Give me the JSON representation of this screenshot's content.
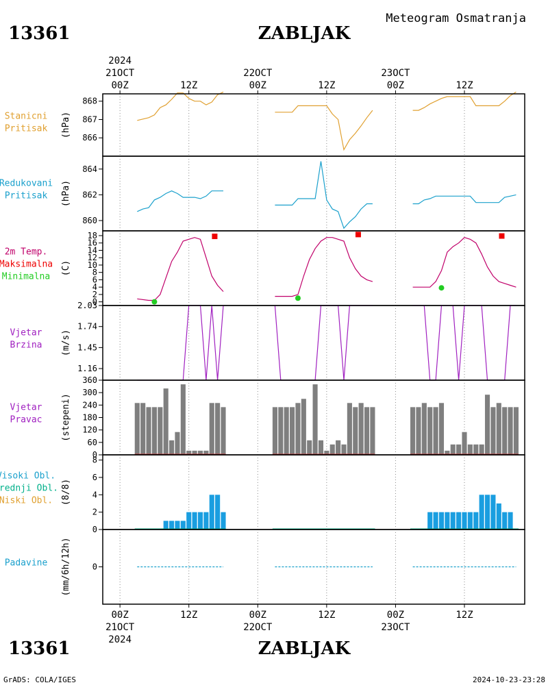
{
  "header": {
    "station_id": "13361",
    "station_name": "ZABLJAK",
    "subtitle": "Meteogram Osmatranja"
  },
  "footer": {
    "station_id": "13361",
    "station_name": "ZABLJAK",
    "credit": "GrADS: COLA/IGES",
    "timestamp": "2024-10-23-23:28"
  },
  "time_axis": {
    "year": "2024",
    "ticks": [
      {
        "hour": 0,
        "top": "21OCT",
        "bottom": "00Z",
        "year": "2024"
      },
      {
        "hour": 12,
        "top": "",
        "bottom": "12Z",
        "year": ""
      },
      {
        "hour": 24,
        "top": "22OCT",
        "bottom": "00Z",
        "year": ""
      },
      {
        "hour": 36,
        "top": "",
        "bottom": "12Z",
        "year": ""
      },
      {
        "hour": 48,
        "top": "23OCT",
        "bottom": "00Z",
        "year": ""
      },
      {
        "hour": 60,
        "top": "",
        "bottom": "12Z",
        "year": ""
      }
    ],
    "hour_range": [
      -3,
      70.5
    ]
  },
  "colors": {
    "station_pressure": "#e0a030",
    "reduced_pressure": "#1aa0cc",
    "temperature": "#c0006a",
    "max_marker": "#ee0000",
    "min_marker": "#22cc22",
    "wind": "#a020c0",
    "direction_bar": "#7f7f7f",
    "cloud_bar": "#1a9ee0",
    "cloud_high": "#1aa0cc",
    "cloud_mid": "#00b08a",
    "cloud_low": "#e0a030",
    "precip": "#1aa0cc"
  },
  "chart_data": [
    {
      "type": "line",
      "panel": "station_pressure",
      "labels": [
        "Stanicni",
        "Pritisak"
      ],
      "ylabel": "(hPa)",
      "ylim": [
        865.0,
        868.4
      ],
      "yticks": [
        866,
        867,
        868
      ],
      "segments": [
        {
          "x": [
            3,
            5,
            6,
            7,
            8,
            9,
            10,
            11,
            12,
            13,
            14,
            15,
            16,
            17,
            18
          ],
          "y": [
            866.95,
            867.1,
            867.25,
            867.65,
            867.8,
            868.1,
            868.45,
            868.45,
            868.15,
            868.0,
            868.0,
            867.8,
            867.95,
            868.35,
            868.5
          ]
        },
        {
          "x": [
            27,
            30,
            31,
            36,
            37,
            38,
            39,
            40,
            41,
            42,
            43,
            44
          ],
          "y": [
            867.4,
            867.4,
            867.75,
            867.75,
            867.3,
            867.0,
            865.35,
            865.9,
            866.25,
            866.65,
            867.1,
            867.5
          ]
        },
        {
          "x": [
            51,
            52,
            53,
            54,
            55,
            56,
            57,
            58,
            59,
            60,
            61,
            62,
            63,
            64,
            65,
            66,
            67,
            68,
            69
          ],
          "y": [
            867.5,
            867.5,
            867.65,
            867.85,
            868.0,
            868.15,
            868.25,
            868.25,
            868.25,
            868.25,
            868.25,
            867.75,
            867.75,
            867.75,
            867.75,
            867.75,
            868.0,
            868.3,
            868.5
          ]
        }
      ]
    },
    {
      "type": "line",
      "panel": "reduced_pressure",
      "labels": [
        "Redukovani",
        "Pritisak"
      ],
      "ylabel": "(hPa)",
      "ylim": [
        859.2,
        865.0
      ],
      "yticks": [
        860,
        862,
        864
      ],
      "segments": [
        {
          "x": [
            3,
            4,
            5,
            6,
            7,
            8,
            9,
            10,
            11,
            12,
            13,
            14,
            15,
            16,
            17,
            18
          ],
          "y": [
            860.7,
            860.9,
            861.0,
            861.6,
            861.8,
            862.1,
            862.3,
            862.1,
            861.8,
            861.8,
            861.8,
            861.7,
            861.9,
            862.3,
            862.3,
            862.3
          ]
        },
        {
          "x": [
            27,
            30,
            31,
            34,
            35,
            36,
            37,
            38,
            39,
            40,
            41,
            42,
            43,
            44
          ],
          "y": [
            861.2,
            861.2,
            861.7,
            861.7,
            864.6,
            861.6,
            860.9,
            860.7,
            859.4,
            859.9,
            860.3,
            860.9,
            861.3,
            861.3
          ]
        },
        {
          "x": [
            51,
            52,
            53,
            54,
            55,
            56,
            57,
            58,
            59,
            60,
            61,
            62,
            63,
            64,
            65,
            66,
            67,
            68,
            69
          ],
          "y": [
            861.3,
            861.3,
            861.6,
            861.7,
            861.9,
            861.9,
            861.9,
            861.9,
            861.9,
            861.9,
            861.9,
            861.4,
            861.4,
            861.4,
            861.4,
            861.4,
            861.8,
            861.9,
            862.0
          ]
        }
      ]
    },
    {
      "type": "line",
      "panel": "temperature",
      "labels": [
        "2m Temp.",
        "Maksimalna",
        "Minimalna"
      ],
      "ylabel": "(C)",
      "ylim": [
        -1,
        19.3
      ],
      "yticks": [
        0,
        2,
        4,
        6,
        8,
        10,
        12,
        14,
        16,
        18
      ],
      "segments": [
        {
          "x": [
            3,
            5,
            6,
            7,
            8,
            9,
            10,
            11,
            12,
            13,
            14,
            15,
            16,
            17,
            18
          ],
          "y": [
            0.8,
            0.4,
            0.4,
            2.0,
            6.5,
            11.0,
            13.5,
            16.5,
            17.0,
            17.5,
            17.0,
            12.0,
            7.0,
            4.5,
            2.8
          ]
        },
        {
          "x": [
            27,
            30,
            31,
            32,
            33,
            34,
            35,
            36,
            37,
            38,
            39,
            40,
            41,
            42,
            43,
            44
          ],
          "y": [
            1.5,
            1.5,
            2.0,
            7.0,
            11.5,
            14.5,
            16.5,
            17.5,
            17.5,
            17.0,
            16.5,
            12.0,
            9.0,
            7.0,
            6.0,
            5.5
          ]
        },
        {
          "x": [
            51,
            54,
            55,
            56,
            57,
            58,
            59,
            60,
            61,
            62,
            63,
            64,
            65,
            66,
            67,
            68,
            69
          ],
          "y": [
            4.0,
            4.0,
            5.5,
            8.5,
            13.5,
            15.0,
            16.0,
            17.5,
            17.0,
            16.0,
            13.0,
            9.5,
            7.0,
            5.5,
            5.0,
            4.5,
            4.0
          ]
        }
      ],
      "max_points": [
        {
          "x": 16.5,
          "y": 17.8
        },
        {
          "x": 41.5,
          "y": 18.3
        },
        {
          "x": 66.5,
          "y": 17.9
        }
      ],
      "min_points": [
        {
          "x": 6,
          "y": 0.0
        },
        {
          "x": 31,
          "y": 1.0
        },
        {
          "x": 56,
          "y": 3.8
        }
      ]
    },
    {
      "type": "line",
      "panel": "wind_speed",
      "labels": [
        "Vjetar",
        "Brzina"
      ],
      "ylabel": "(m/s)",
      "ylim": [
        1.0,
        2.03
      ],
      "yticks": [
        1.16,
        1.45,
        1.74,
        2.03
      ],
      "ytick_labels": [
        "1.16",
        "1.45",
        "1.74",
        "2.03"
      ],
      "segments": [
        {
          "x": [
            3,
            11,
            12,
            13,
            14,
            15,
            16,
            17,
            18
          ],
          "y": [
            1.0,
            1.0,
            2.03,
            2.03,
            2.03,
            1.0,
            2.03,
            1.0,
            2.03
          ]
        },
        {
          "x": [
            27,
            28,
            29,
            30,
            31,
            32,
            33,
            34,
            35,
            36,
            37,
            38,
            39,
            40,
            41,
            42,
            43,
            44
          ],
          "y": [
            2.03,
            1.0,
            1.0,
            1.0,
            1.0,
            1.0,
            1.0,
            1.0,
            2.03,
            2.03,
            2.03,
            2.03,
            1.0,
            2.03,
            2.03,
            2.03,
            2.03,
            2.03
          ]
        },
        {
          "x": [
            51,
            52,
            53,
            54,
            55,
            56,
            57,
            58,
            59,
            60,
            61,
            62,
            63,
            64,
            65,
            66,
            67,
            68,
            69
          ],
          "y": [
            2.03,
            2.03,
            2.03,
            1.0,
            1.0,
            2.03,
            2.03,
            2.03,
            1.0,
            2.03,
            2.03,
            2.03,
            2.03,
            1.0,
            1.0,
            1.0,
            1.0,
            2.03,
            2.03
          ]
        }
      ]
    },
    {
      "type": "bar",
      "panel": "wind_direction",
      "labels": [
        "Vjetar",
        "Pravac"
      ],
      "ylabel": "(stepeni)",
      "ylim": [
        0,
        360
      ],
      "yticks": [
        0,
        60,
        120,
        180,
        240,
        300,
        360
      ],
      "x": [
        3,
        4,
        5,
        6,
        7,
        8,
        9,
        10,
        11,
        12,
        13,
        14,
        15,
        16,
        17,
        18,
        27,
        28,
        29,
        30,
        31,
        32,
        33,
        34,
        35,
        36,
        37,
        38,
        39,
        40,
        41,
        42,
        43,
        44,
        51,
        52,
        53,
        54,
        55,
        56,
        57,
        58,
        59,
        60,
        61,
        62,
        63,
        64,
        65,
        66,
        67,
        68,
        69
      ],
      "values": [
        250,
        250,
        230,
        230,
        230,
        320,
        70,
        110,
        340,
        20,
        20,
        20,
        20,
        250,
        250,
        230,
        230,
        230,
        230,
        230,
        250,
        270,
        70,
        340,
        70,
        20,
        50,
        70,
        50,
        250,
        230,
        250,
        230,
        230,
        230,
        230,
        250,
        230,
        230,
        250,
        20,
        50,
        50,
        110,
        50,
        50,
        50,
        290,
        230,
        250,
        230,
        230,
        230
      ]
    },
    {
      "type": "bar",
      "panel": "clouds",
      "labels": [
        "Visoki Obl.",
        "Srednji Obl.",
        "Niski Obl."
      ],
      "ylabel": "(8/8)",
      "ylim": [
        0,
        8.6
      ],
      "yticks": [
        0,
        2,
        4,
        6,
        8
      ],
      "x": [
        3,
        4,
        5,
        6,
        7,
        8,
        9,
        10,
        11,
        12,
        13,
        14,
        15,
        16,
        17,
        18,
        27,
        28,
        29,
        30,
        31,
        32,
        33,
        34,
        35,
        36,
        37,
        38,
        39,
        40,
        41,
        42,
        43,
        44,
        51,
        52,
        53,
        54,
        55,
        56,
        57,
        58,
        59,
        60,
        61,
        62,
        63,
        64,
        65,
        66,
        67,
        68,
        69
      ],
      "values": [
        0,
        0,
        0,
        0,
        0,
        1,
        1,
        1,
        1,
        2,
        2,
        2,
        2,
        4,
        4,
        2,
        0,
        0,
        0,
        0,
        0,
        0,
        0,
        0,
        0,
        0,
        0,
        0,
        0,
        0,
        0,
        0,
        0,
        0,
        0,
        0,
        0,
        2,
        2,
        2,
        2,
        2,
        2,
        2,
        2,
        2,
        4,
        4,
        4,
        3,
        2,
        2,
        0
      ]
    },
    {
      "type": "line",
      "panel": "precipitation",
      "labels": [
        "Padavine"
      ],
      "ylabel": "(mm/6h/12h)",
      "ylim": [
        -1.0,
        1.0
      ],
      "yticks": [
        0
      ],
      "segments": [
        {
          "x": [
            3,
            18
          ],
          "y": [
            0,
            0
          ]
        },
        {
          "x": [
            27,
            44
          ],
          "y": [
            0,
            0
          ]
        },
        {
          "x": [
            51,
            69
          ],
          "y": [
            0,
            0
          ]
        }
      ]
    }
  ]
}
